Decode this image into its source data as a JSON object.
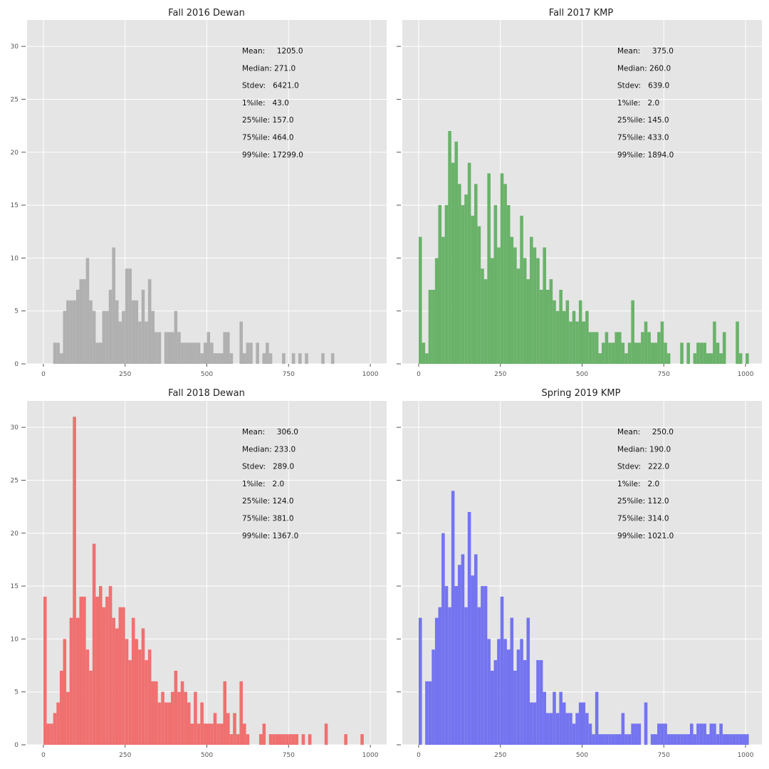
{
  "chart_data": [
    {
      "type": "bar",
      "title": "Fall 2016 Dewan",
      "color": "#b0b0b0",
      "xlim": [
        -50,
        1050
      ],
      "ylim": [
        0,
        32.5
      ],
      "xticks": [
        "0",
        "250",
        "500",
        "750",
        "1000"
      ],
      "yticks": [
        "0",
        "5",
        "10",
        "15",
        "20",
        "25",
        "30"
      ],
      "show_ytick_labels": true,
      "bin_width": 10,
      "bins": [
        [
          30,
          2
        ],
        [
          40,
          2
        ],
        [
          50,
          1
        ],
        [
          60,
          5
        ],
        [
          70,
          6
        ],
        [
          80,
          6
        ],
        [
          90,
          6
        ],
        [
          100,
          7
        ],
        [
          110,
          8
        ],
        [
          120,
          8
        ],
        [
          130,
          10
        ],
        [
          140,
          6
        ],
        [
          150,
          5
        ],
        [
          160,
          2
        ],
        [
          170,
          2
        ],
        [
          180,
          5
        ],
        [
          190,
          5
        ],
        [
          200,
          7
        ],
        [
          210,
          11
        ],
        [
          220,
          6
        ],
        [
          230,
          4
        ],
        [
          240,
          5
        ],
        [
          250,
          9
        ],
        [
          260,
          9
        ],
        [
          270,
          6
        ],
        [
          280,
          6
        ],
        [
          290,
          4
        ],
        [
          300,
          7
        ],
        [
          310,
          4
        ],
        [
          320,
          8
        ],
        [
          330,
          5
        ],
        [
          340,
          3
        ],
        [
          350,
          3
        ],
        [
          370,
          3
        ],
        [
          380,
          3
        ],
        [
          390,
          3
        ],
        [
          400,
          5
        ],
        [
          410,
          3
        ],
        [
          420,
          2
        ],
        [
          430,
          2
        ],
        [
          440,
          2
        ],
        [
          450,
          2
        ],
        [
          460,
          2
        ],
        [
          470,
          2
        ],
        [
          480,
          1
        ],
        [
          490,
          2
        ],
        [
          500,
          3
        ],
        [
          510,
          2
        ],
        [
          520,
          1
        ],
        [
          530,
          1
        ],
        [
          540,
          1
        ],
        [
          550,
          3
        ],
        [
          560,
          3
        ],
        [
          570,
          1
        ],
        [
          600,
          4
        ],
        [
          610,
          1
        ],
        [
          620,
          2
        ],
        [
          630,
          2
        ],
        [
          650,
          2
        ],
        [
          670,
          1
        ],
        [
          680,
          2
        ],
        [
          690,
          1
        ],
        [
          730,
          1
        ],
        [
          760,
          1
        ],
        [
          780,
          1
        ],
        [
          800,
          1
        ],
        [
          850,
          1
        ],
        [
          880,
          1
        ]
      ],
      "stats": [
        "Mean:     1205.0",
        "Median: 271.0",
        "Stdev:   6421.0",
        "1%ile:   43.0",
        "25%ile: 157.0",
        "75%ile: 464.0",
        "99%ile: 17299.0"
      ]
    },
    {
      "type": "bar",
      "title": "Fall 2017 KMP",
      "color": "#6ab26a",
      "xlim": [
        -50,
        1050
      ],
      "ylim": [
        0,
        32.5
      ],
      "xticks": [
        "0",
        "250",
        "500",
        "750",
        "1000"
      ],
      "yticks": [
        "0",
        "5",
        "10",
        "15",
        "20",
        "25",
        "30"
      ],
      "show_ytick_labels": false,
      "bin_width": 10,
      "bins": [
        [
          0,
          12
        ],
        [
          10,
          2
        ],
        [
          20,
          1
        ],
        [
          30,
          7
        ],
        [
          40,
          7
        ],
        [
          50,
          10
        ],
        [
          60,
          15
        ],
        [
          70,
          12
        ],
        [
          80,
          15
        ],
        [
          90,
          22
        ],
        [
          100,
          19
        ],
        [
          110,
          21
        ],
        [
          120,
          17
        ],
        [
          130,
          15
        ],
        [
          140,
          16
        ],
        [
          150,
          19
        ],
        [
          160,
          14
        ],
        [
          170,
          17
        ],
        [
          180,
          13
        ],
        [
          190,
          9
        ],
        [
          200,
          8
        ],
        [
          210,
          18
        ],
        [
          220,
          10
        ],
        [
          230,
          15
        ],
        [
          240,
          11
        ],
        [
          250,
          18
        ],
        [
          260,
          17
        ],
        [
          270,
          15
        ],
        [
          280,
          12
        ],
        [
          290,
          11
        ],
        [
          300,
          9
        ],
        [
          310,
          14
        ],
        [
          320,
          10
        ],
        [
          330,
          8
        ],
        [
          340,
          12
        ],
        [
          350,
          11
        ],
        [
          360,
          10
        ],
        [
          370,
          7
        ],
        [
          380,
          11
        ],
        [
          390,
          7
        ],
        [
          400,
          8
        ],
        [
          410,
          6
        ],
        [
          420,
          5
        ],
        [
          430,
          7
        ],
        [
          440,
          5
        ],
        [
          450,
          6
        ],
        [
          460,
          4
        ],
        [
          470,
          5
        ],
        [
          480,
          4
        ],
        [
          490,
          6
        ],
        [
          500,
          4
        ],
        [
          510,
          5
        ],
        [
          520,
          3
        ],
        [
          530,
          3
        ],
        [
          540,
          3
        ],
        [
          550,
          1
        ],
        [
          560,
          2
        ],
        [
          570,
          3
        ],
        [
          580,
          2
        ],
        [
          590,
          2
        ],
        [
          600,
          3
        ],
        [
          610,
          3
        ],
        [
          620,
          2
        ],
        [
          630,
          1
        ],
        [
          640,
          2
        ],
        [
          650,
          6
        ],
        [
          660,
          2
        ],
        [
          670,
          2
        ],
        [
          680,
          3
        ],
        [
          690,
          4
        ],
        [
          700,
          3
        ],
        [
          710,
          2
        ],
        [
          720,
          2
        ],
        [
          730,
          3
        ],
        [
          740,
          4
        ],
        [
          750,
          2
        ],
        [
          760,
          1
        ],
        [
          800,
          2
        ],
        [
          820,
          2
        ],
        [
          840,
          1
        ],
        [
          850,
          2
        ],
        [
          860,
          2
        ],
        [
          870,
          2
        ],
        [
          880,
          1
        ],
        [
          890,
          1
        ],
        [
          900,
          4
        ],
        [
          910,
          2
        ],
        [
          920,
          1
        ],
        [
          930,
          3
        ],
        [
          970,
          4
        ],
        [
          980,
          1
        ],
        [
          1000,
          1
        ]
      ],
      "stats": [
        "Mean:     375.0",
        "Median: 260.0",
        "Stdev:   639.0",
        "1%ile:   2.0",
        "25%ile: 145.0",
        "75%ile: 433.0",
        "99%ile: 1894.0"
      ]
    },
    {
      "type": "bar",
      "title": "Fall 2018 Dewan",
      "color": "#f07070",
      "xlim": [
        -50,
        1050
      ],
      "ylim": [
        0,
        32.5
      ],
      "xticks": [
        "0",
        "250",
        "500",
        "750",
        "1000"
      ],
      "yticks": [
        "0",
        "5",
        "10",
        "15",
        "20",
        "25",
        "30"
      ],
      "show_ytick_labels": true,
      "bin_width": 10,
      "bins": [
        [
          0,
          14
        ],
        [
          10,
          2
        ],
        [
          20,
          2
        ],
        [
          30,
          3
        ],
        [
          40,
          4
        ],
        [
          50,
          7
        ],
        [
          60,
          10
        ],
        [
          70,
          5
        ],
        [
          80,
          12
        ],
        [
          90,
          31
        ],
        [
          100,
          12
        ],
        [
          110,
          14
        ],
        [
          120,
          14
        ],
        [
          130,
          9
        ],
        [
          140,
          7
        ],
        [
          150,
          19
        ],
        [
          160,
          14
        ],
        [
          170,
          15
        ],
        [
          180,
          13
        ],
        [
          190,
          14
        ],
        [
          200,
          15
        ],
        [
          210,
          12
        ],
        [
          220,
          11
        ],
        [
          230,
          13
        ],
        [
          240,
          13
        ],
        [
          250,
          10
        ],
        [
          260,
          8
        ],
        [
          270,
          12
        ],
        [
          280,
          10
        ],
        [
          290,
          9
        ],
        [
          300,
          11
        ],
        [
          310,
          8
        ],
        [
          320,
          9
        ],
        [
          330,
          6
        ],
        [
          340,
          6
        ],
        [
          350,
          4
        ],
        [
          360,
          5
        ],
        [
          370,
          4
        ],
        [
          380,
          4
        ],
        [
          390,
          5
        ],
        [
          400,
          7
        ],
        [
          410,
          5
        ],
        [
          420,
          6
        ],
        [
          430,
          5
        ],
        [
          440,
          4
        ],
        [
          450,
          2
        ],
        [
          460,
          5
        ],
        [
          470,
          2
        ],
        [
          480,
          4
        ],
        [
          490,
          2
        ],
        [
          500,
          2
        ],
        [
          510,
          2
        ],
        [
          520,
          3
        ],
        [
          530,
          2
        ],
        [
          540,
          2
        ],
        [
          550,
          6
        ],
        [
          560,
          3
        ],
        [
          570,
          1
        ],
        [
          580,
          3
        ],
        [
          590,
          1
        ],
        [
          600,
          6
        ],
        [
          610,
          2
        ],
        [
          620,
          1
        ],
        [
          660,
          1
        ],
        [
          670,
          2
        ],
        [
          690,
          1
        ],
        [
          700,
          1
        ],
        [
          710,
          1
        ],
        [
          720,
          1
        ],
        [
          730,
          1
        ],
        [
          740,
          1
        ],
        [
          750,
          1
        ],
        [
          760,
          1
        ],
        [
          770,
          1
        ],
        [
          790,
          1
        ],
        [
          810,
          1
        ],
        [
          860,
          2
        ],
        [
          920,
          1
        ],
        [
          970,
          1
        ]
      ],
      "stats": [
        "Mean:     306.0",
        "Median: 233.0",
        "Stdev:   289.0",
        "1%ile:   2.0",
        "25%ile: 124.0",
        "75%ile: 381.0",
        "99%ile: 1367.0"
      ]
    },
    {
      "type": "bar",
      "title": "Spring 2019 KMP",
      "color": "#7474f0",
      "xlim": [
        -50,
        1050
      ],
      "ylim": [
        0,
        32.5
      ],
      "xticks": [
        "0",
        "250",
        "500",
        "750",
        "1000"
      ],
      "yticks": [
        "0",
        "5",
        "10",
        "15",
        "20",
        "25",
        "30"
      ],
      "show_ytick_labels": false,
      "bin_width": 10,
      "bins": [
        [
          0,
          12
        ],
        [
          20,
          6
        ],
        [
          30,
          6
        ],
        [
          40,
          9
        ],
        [
          50,
          12
        ],
        [
          60,
          13
        ],
        [
          70,
          20
        ],
        [
          80,
          15
        ],
        [
          90,
          13
        ],
        [
          100,
          24
        ],
        [
          110,
          15
        ],
        [
          120,
          17
        ],
        [
          130,
          18
        ],
        [
          140,
          13
        ],
        [
          150,
          22
        ],
        [
          160,
          16
        ],
        [
          170,
          18
        ],
        [
          180,
          13
        ],
        [
          190,
          15
        ],
        [
          200,
          15
        ],
        [
          210,
          10
        ],
        [
          220,
          7
        ],
        [
          230,
          8
        ],
        [
          240,
          10
        ],
        [
          250,
          14
        ],
        [
          260,
          10
        ],
        [
          270,
          9
        ],
        [
          280,
          12
        ],
        [
          290,
          7
        ],
        [
          300,
          9
        ],
        [
          310,
          10
        ],
        [
          320,
          8
        ],
        [
          330,
          12
        ],
        [
          340,
          4
        ],
        [
          350,
          4
        ],
        [
          360,
          8
        ],
        [
          370,
          8
        ],
        [
          380,
          5
        ],
        [
          390,
          3
        ],
        [
          400,
          3
        ],
        [
          410,
          5
        ],
        [
          420,
          3
        ],
        [
          430,
          5
        ],
        [
          440,
          4
        ],
        [
          450,
          3
        ],
        [
          460,
          3
        ],
        [
          470,
          2
        ],
        [
          480,
          3
        ],
        [
          490,
          4
        ],
        [
          500,
          4
        ],
        [
          510,
          3
        ],
        [
          520,
          2
        ],
        [
          530,
          1
        ],
        [
          540,
          5
        ],
        [
          550,
          1
        ],
        [
          560,
          1
        ],
        [
          570,
          1
        ],
        [
          580,
          1
        ],
        [
          590,
          1
        ],
        [
          600,
          1
        ],
        [
          610,
          1
        ],
        [
          620,
          3
        ],
        [
          630,
          1
        ],
        [
          640,
          1
        ],
        [
          650,
          2
        ],
        [
          660,
          2
        ],
        [
          670,
          2
        ],
        [
          690,
          4
        ],
        [
          710,
          1
        ],
        [
          720,
          1
        ],
        [
          730,
          2
        ],
        [
          740,
          2
        ],
        [
          750,
          2
        ],
        [
          760,
          1
        ],
        [
          770,
          1
        ],
        [
          780,
          1
        ],
        [
          790,
          1
        ],
        [
          800,
          1
        ],
        [
          810,
          1
        ],
        [
          820,
          1
        ],
        [
          830,
          2
        ],
        [
          840,
          1
        ],
        [
          850,
          2
        ],
        [
          860,
          2
        ],
        [
          870,
          2
        ],
        [
          880,
          1
        ],
        [
          890,
          2
        ],
        [
          900,
          2
        ],
        [
          910,
          1
        ],
        [
          920,
          2
        ],
        [
          930,
          1
        ],
        [
          940,
          1
        ],
        [
          950,
          1
        ],
        [
          960,
          1
        ],
        [
          970,
          1
        ],
        [
          980,
          1
        ],
        [
          990,
          1
        ],
        [
          1000,
          1
        ]
      ],
      "stats": [
        "Mean:     250.0",
        "Median: 190.0",
        "Stdev:   222.0",
        "1%ile:   2.0",
        "25%ile: 112.0",
        "75%ile: 314.0",
        "99%ile: 1021.0"
      ]
    }
  ]
}
